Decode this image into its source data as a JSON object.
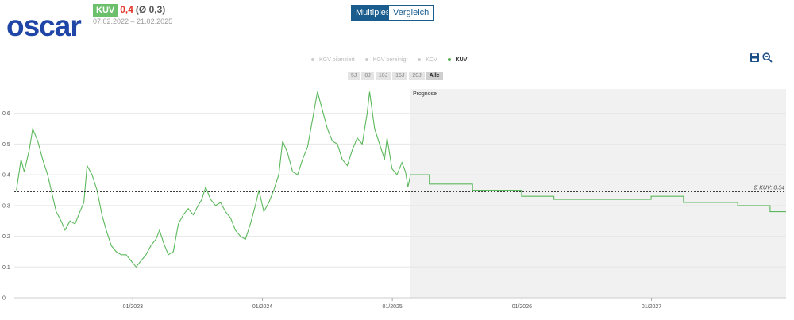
{
  "header": {
    "logo": "oscar",
    "badge": "KUV",
    "value": "0,4",
    "average": "(Ø 0,3)",
    "date_range": "07.02.2022 – 21.02.2025"
  },
  "tabs": [
    {
      "label": "Multiples",
      "active": true
    },
    {
      "label": "Vergleich",
      "active": false
    }
  ],
  "legend": [
    {
      "label": "KGV bilanziert",
      "active": false
    },
    {
      "label": "KGV bereinigt",
      "active": false
    },
    {
      "label": "KCV",
      "active": false
    },
    {
      "label": "KUV",
      "active": true
    }
  ],
  "ranges": [
    {
      "label": "5J",
      "active": false
    },
    {
      "label": "8J",
      "active": false
    },
    {
      "label": "10J",
      "active": false
    },
    {
      "label": "15J",
      "active": false
    },
    {
      "label": "20J",
      "active": false
    },
    {
      "label": "Alle",
      "active": true
    }
  ],
  "icons": [
    "save-icon",
    "zoom-out-icon"
  ],
  "colors": {
    "series": "#5cb85c",
    "accent": "#1a5c8e",
    "value": "#e2362d",
    "forecast_bg": "#f1f1f1"
  },
  "chart_data": {
    "type": "line",
    "title": "",
    "xlabel": "",
    "ylabel": "",
    "ylim": [
      0,
      0.7
    ],
    "yticks": [
      "0",
      "0.1",
      "0.2",
      "0.3",
      "0.4",
      "0.5",
      "0.6"
    ],
    "xticks": [
      "01/2023",
      "01/2024",
      "01/2025",
      "01/2026",
      "01/2027"
    ],
    "grid": true,
    "forecast_label": "Prognose",
    "average_label": "Ø KUV: 0,34",
    "average_value": 0.345,
    "series": [
      {
        "name": "KUV",
        "historical": [
          [
            "2022-02-07",
            0.35
          ],
          [
            "2022-02-20",
            0.45
          ],
          [
            "2022-03-01",
            0.41
          ],
          [
            "2022-03-15",
            0.48
          ],
          [
            "2022-03-25",
            0.55
          ],
          [
            "2022-04-08",
            0.51
          ],
          [
            "2022-04-22",
            0.45
          ],
          [
            "2022-05-06",
            0.4
          ],
          [
            "2022-05-16",
            0.35
          ],
          [
            "2022-05-30",
            0.28
          ],
          [
            "2022-06-13",
            0.25
          ],
          [
            "2022-06-24",
            0.22
          ],
          [
            "2022-07-08",
            0.25
          ],
          [
            "2022-07-22",
            0.24
          ],
          [
            "2022-08-05",
            0.28
          ],
          [
            "2022-08-16",
            0.31
          ],
          [
            "2022-08-25",
            0.43
          ],
          [
            "2022-09-08",
            0.4
          ],
          [
            "2022-09-22",
            0.35
          ],
          [
            "2022-10-06",
            0.27
          ],
          [
            "2022-10-18",
            0.22
          ],
          [
            "2022-11-01",
            0.17
          ],
          [
            "2022-11-15",
            0.15
          ],
          [
            "2022-11-29",
            0.14
          ],
          [
            "2022-12-13",
            0.14
          ],
          [
            "2022-12-27",
            0.12
          ],
          [
            "2023-01-10",
            0.1
          ],
          [
            "2023-01-24",
            0.12
          ],
          [
            "2023-02-07",
            0.14
          ],
          [
            "2023-02-21",
            0.17
          ],
          [
            "2023-03-07",
            0.19
          ],
          [
            "2023-03-17",
            0.22
          ],
          [
            "2023-03-28",
            0.18
          ],
          [
            "2023-04-11",
            0.14
          ],
          [
            "2023-04-25",
            0.15
          ],
          [
            "2023-05-09",
            0.24
          ],
          [
            "2023-05-23",
            0.27
          ],
          [
            "2023-06-06",
            0.29
          ],
          [
            "2023-06-20",
            0.27
          ],
          [
            "2023-07-04",
            0.3
          ],
          [
            "2023-07-14",
            0.32
          ],
          [
            "2023-07-25",
            0.36
          ],
          [
            "2023-08-08",
            0.32
          ],
          [
            "2023-08-22",
            0.3
          ],
          [
            "2023-09-05",
            0.31
          ],
          [
            "2023-09-19",
            0.28
          ],
          [
            "2023-10-03",
            0.26
          ],
          [
            "2023-10-17",
            0.22
          ],
          [
            "2023-10-31",
            0.2
          ],
          [
            "2023-11-14",
            0.19
          ],
          [
            "2023-11-28",
            0.24
          ],
          [
            "2023-12-12",
            0.3
          ],
          [
            "2023-12-22",
            0.35
          ],
          [
            "2024-01-05",
            0.28
          ],
          [
            "2024-01-19",
            0.31
          ],
          [
            "2024-02-02",
            0.35
          ],
          [
            "2024-02-16",
            0.4
          ],
          [
            "2024-02-27",
            0.51
          ],
          [
            "2024-03-12",
            0.47
          ],
          [
            "2024-03-26",
            0.41
          ],
          [
            "2024-04-09",
            0.4
          ],
          [
            "2024-04-23",
            0.45
          ],
          [
            "2024-05-07",
            0.49
          ],
          [
            "2024-05-21",
            0.58
          ],
          [
            "2024-06-04",
            0.67
          ],
          [
            "2024-06-18",
            0.61
          ],
          [
            "2024-07-02",
            0.55
          ],
          [
            "2024-07-16",
            0.51
          ],
          [
            "2024-07-30",
            0.5
          ],
          [
            "2024-08-13",
            0.45
          ],
          [
            "2024-08-27",
            0.43
          ],
          [
            "2024-09-10",
            0.48
          ],
          [
            "2024-09-24",
            0.52
          ],
          [
            "2024-10-08",
            0.5
          ],
          [
            "2024-10-22",
            0.6
          ],
          [
            "2024-10-29",
            0.67
          ],
          [
            "2024-11-12",
            0.55
          ],
          [
            "2024-11-26",
            0.5
          ],
          [
            "2024-12-10",
            0.45
          ],
          [
            "2024-12-17",
            0.52
          ],
          [
            "2024-12-31",
            0.42
          ],
          [
            "2025-01-14",
            0.4
          ],
          [
            "2025-01-28",
            0.44
          ],
          [
            "2025-02-07",
            0.41
          ],
          [
            "2025-02-14",
            0.36
          ],
          [
            "2025-02-21",
            0.4
          ]
        ],
        "forecast": [
          [
            "2025-02-21",
            0.4
          ],
          [
            "2025-04-15",
            0.4
          ],
          [
            "2025-04-15",
            0.37
          ],
          [
            "2025-08-15",
            0.37
          ],
          [
            "2025-08-15",
            0.35
          ],
          [
            "2025-12-31",
            0.35
          ],
          [
            "2025-12-31",
            0.33
          ],
          [
            "2026-04-01",
            0.33
          ],
          [
            "2026-04-01",
            0.32
          ],
          [
            "2026-12-31",
            0.32
          ],
          [
            "2026-12-31",
            0.33
          ],
          [
            "2027-04-01",
            0.33
          ],
          [
            "2027-04-01",
            0.31
          ],
          [
            "2027-09-01",
            0.31
          ],
          [
            "2027-09-01",
            0.3
          ],
          [
            "2027-12-01",
            0.3
          ],
          [
            "2027-12-01",
            0.28
          ],
          [
            "2028-01-15",
            0.28
          ]
        ]
      }
    ]
  }
}
